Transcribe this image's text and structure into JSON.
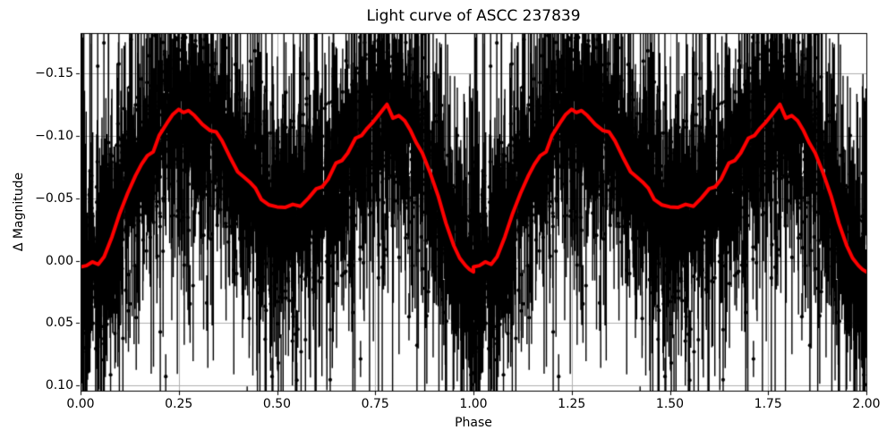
{
  "chart_data": {
    "type": "scatter",
    "title": "Light curve of ASCC 237839",
    "xlabel": "Phase",
    "ylabel": "Δ Magnitude",
    "xlim": [
      0.0,
      2.0
    ],
    "ylim": [
      -0.182,
      0.104
    ],
    "y_axis_inverted": true,
    "grid": true,
    "x_ticks": [
      0.0,
      0.25,
      0.5,
      0.75,
      1.0,
      1.25,
      1.5,
      1.75,
      2.0
    ],
    "x_tick_labels": [
      "0.00",
      "0.25",
      "0.50",
      "0.75",
      "1.00",
      "1.25",
      "1.50",
      "1.75",
      "2.00"
    ],
    "y_ticks": [
      -0.15,
      -0.1,
      -0.05,
      0.0,
      0.05,
      0.1
    ],
    "y_tick_labels": [
      "−0.15",
      "−0.10",
      "−0.05",
      "0.00",
      "0.05",
      "0.10"
    ],
    "colors": {
      "background": "#ffffff",
      "text": "#000000",
      "grid": "#b0b0b0",
      "scatter": "#000000",
      "mean_curve": "#ff0000"
    },
    "series": [
      {
        "name": "observations-with-errorbars",
        "type": "scatter_errorbar",
        "color": "#000000",
        "marker_radius": 2.1,
        "errorbar_line_width": 1.4,
        "points_per_cycle": 2600,
        "cycle_offsets": [
          0,
          1
        ],
        "random_seed": 237839,
        "noise_model": {
          "base_sigma": 0.015,
          "sigma_per_error": 0.55,
          "error_floor": 0.012,
          "error_scale": 0.022,
          "long_error_fraction": 0.02,
          "long_error_extra": 0.09,
          "error_max": 0.18,
          "faint_tail_fraction": 0.08,
          "faint_tail_scale": 0.05
        }
      },
      {
        "name": "phase-binned-mean-curve",
        "type": "line",
        "color": "#ff0000",
        "line_width": 4,
        "cycle_offsets": [
          0,
          1
        ],
        "phase": [
          0.0,
          0.015,
          0.03,
          0.045,
          0.06,
          0.08,
          0.1,
          0.12,
          0.14,
          0.155,
          0.17,
          0.185,
          0.2,
          0.22,
          0.235,
          0.25,
          0.262,
          0.275,
          0.29,
          0.31,
          0.33,
          0.345,
          0.36,
          0.38,
          0.4,
          0.415,
          0.43,
          0.445,
          0.46,
          0.48,
          0.5,
          0.52,
          0.54,
          0.56,
          0.58,
          0.6,
          0.615,
          0.63,
          0.65,
          0.665,
          0.68,
          0.7,
          0.715,
          0.73,
          0.745,
          0.76,
          0.78,
          0.795,
          0.81,
          0.825,
          0.84,
          0.855,
          0.87,
          0.89,
          0.91,
          0.93,
          0.95,
          0.965,
          0.98,
          0.99,
          1.0
        ],
        "dmag": [
          0.005,
          0.004,
          0.001,
          0.003,
          -0.003,
          -0.019,
          -0.038,
          -0.054,
          -0.068,
          -0.077,
          -0.084,
          -0.087,
          -0.1,
          -0.11,
          -0.117,
          -0.121,
          -0.1185,
          -0.12,
          -0.116,
          -0.109,
          -0.104,
          -0.103,
          -0.096,
          -0.083,
          -0.071,
          -0.067,
          -0.063,
          -0.058,
          -0.049,
          -0.0445,
          -0.043,
          -0.0425,
          -0.045,
          -0.0435,
          -0.05,
          -0.0575,
          -0.059,
          -0.065,
          -0.078,
          -0.08,
          -0.086,
          -0.098,
          -0.1,
          -0.106,
          -0.111,
          -0.117,
          -0.125,
          -0.114,
          -0.116,
          -0.112,
          -0.104,
          -0.094,
          -0.086,
          -0.07,
          -0.052,
          -0.03,
          -0.012,
          -0.002,
          0.004,
          0.007,
          0.009
        ]
      }
    ]
  }
}
